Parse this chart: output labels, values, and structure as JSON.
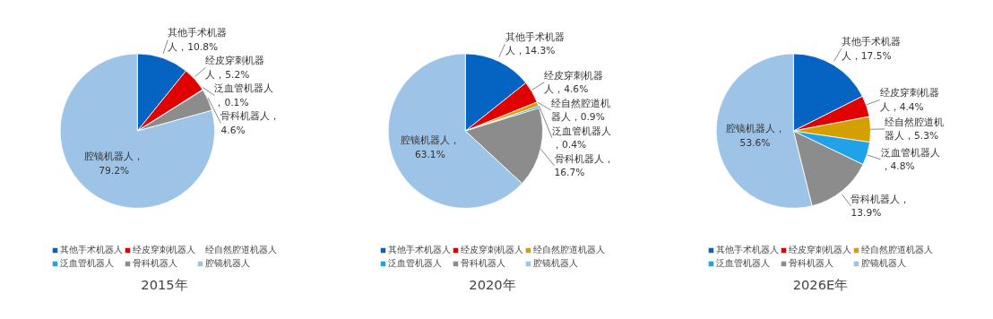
{
  "chart_data": [
    {
      "type": "pie",
      "title": "2015年",
      "legend": "bottom",
      "categories": [
        "其他手术机器人",
        "经皮穿刺机器人",
        "经自然腔道机器人",
        "泛血管机器人",
        "骨科机器人",
        "腔镜机器人"
      ],
      "values": [
        10.8,
        5.2,
        null,
        0.1,
        4.6,
        79.2
      ],
      "colors": [
        "#0563c1",
        "#e00000",
        "#d4a000",
        "#1fa2e8",
        "#8c8c8c",
        "#9dc3e6"
      ],
      "value_labels": [
        "其他手术机器人，10.8%",
        "经皮穿刺机器人，5.2%",
        null,
        "泛血管机器人，0.1%",
        "骨科机器人，4.6%",
        "腔镜机器人，79.2%"
      ]
    },
    {
      "type": "pie",
      "title": "2020年",
      "legend": "bottom",
      "categories": [
        "其他手术机器人",
        "经皮穿刺机器人",
        "经自然腔道机器人",
        "泛血管机器人",
        "骨科机器人",
        "腔镜机器人"
      ],
      "values": [
        14.3,
        4.6,
        0.9,
        0.4,
        16.7,
        63.1
      ],
      "colors": [
        "#0563c1",
        "#e00000",
        "#d4a000",
        "#1fa2e8",
        "#8c8c8c",
        "#9dc3e6"
      ],
      "value_labels": [
        "其他手术机器人，14.3%",
        "经皮穿刺机器人，4.6%",
        "经自然腔道机器人，0.9%",
        "泛血管机器人，0.4%",
        "骨科机器人，16.7%",
        "腔镜机器人，63.1%"
      ]
    },
    {
      "type": "pie",
      "title": "2026E年",
      "legend": "bottom",
      "categories": [
        "其他手术机器人",
        "经皮穿刺机器人",
        "经自然腔道机器人",
        "泛血管机器人",
        "骨科机器人",
        "腔镜机器人"
      ],
      "values": [
        17.5,
        4.4,
        5.3,
        4.8,
        13.9,
        53.6
      ],
      "colors": [
        "#0563c1",
        "#e00000",
        "#d4a000",
        "#1fa2e8",
        "#8c8c8c",
        "#9dc3e6"
      ],
      "value_labels": [
        "其他手术机器人，17.5%",
        "经皮穿刺机器人，4.4%",
        "经自然腔道机器人，5.3%",
        "泛血管机器人，4.8%",
        "骨科机器人，13.9%",
        "腔镜机器人，53.6%"
      ]
    }
  ]
}
